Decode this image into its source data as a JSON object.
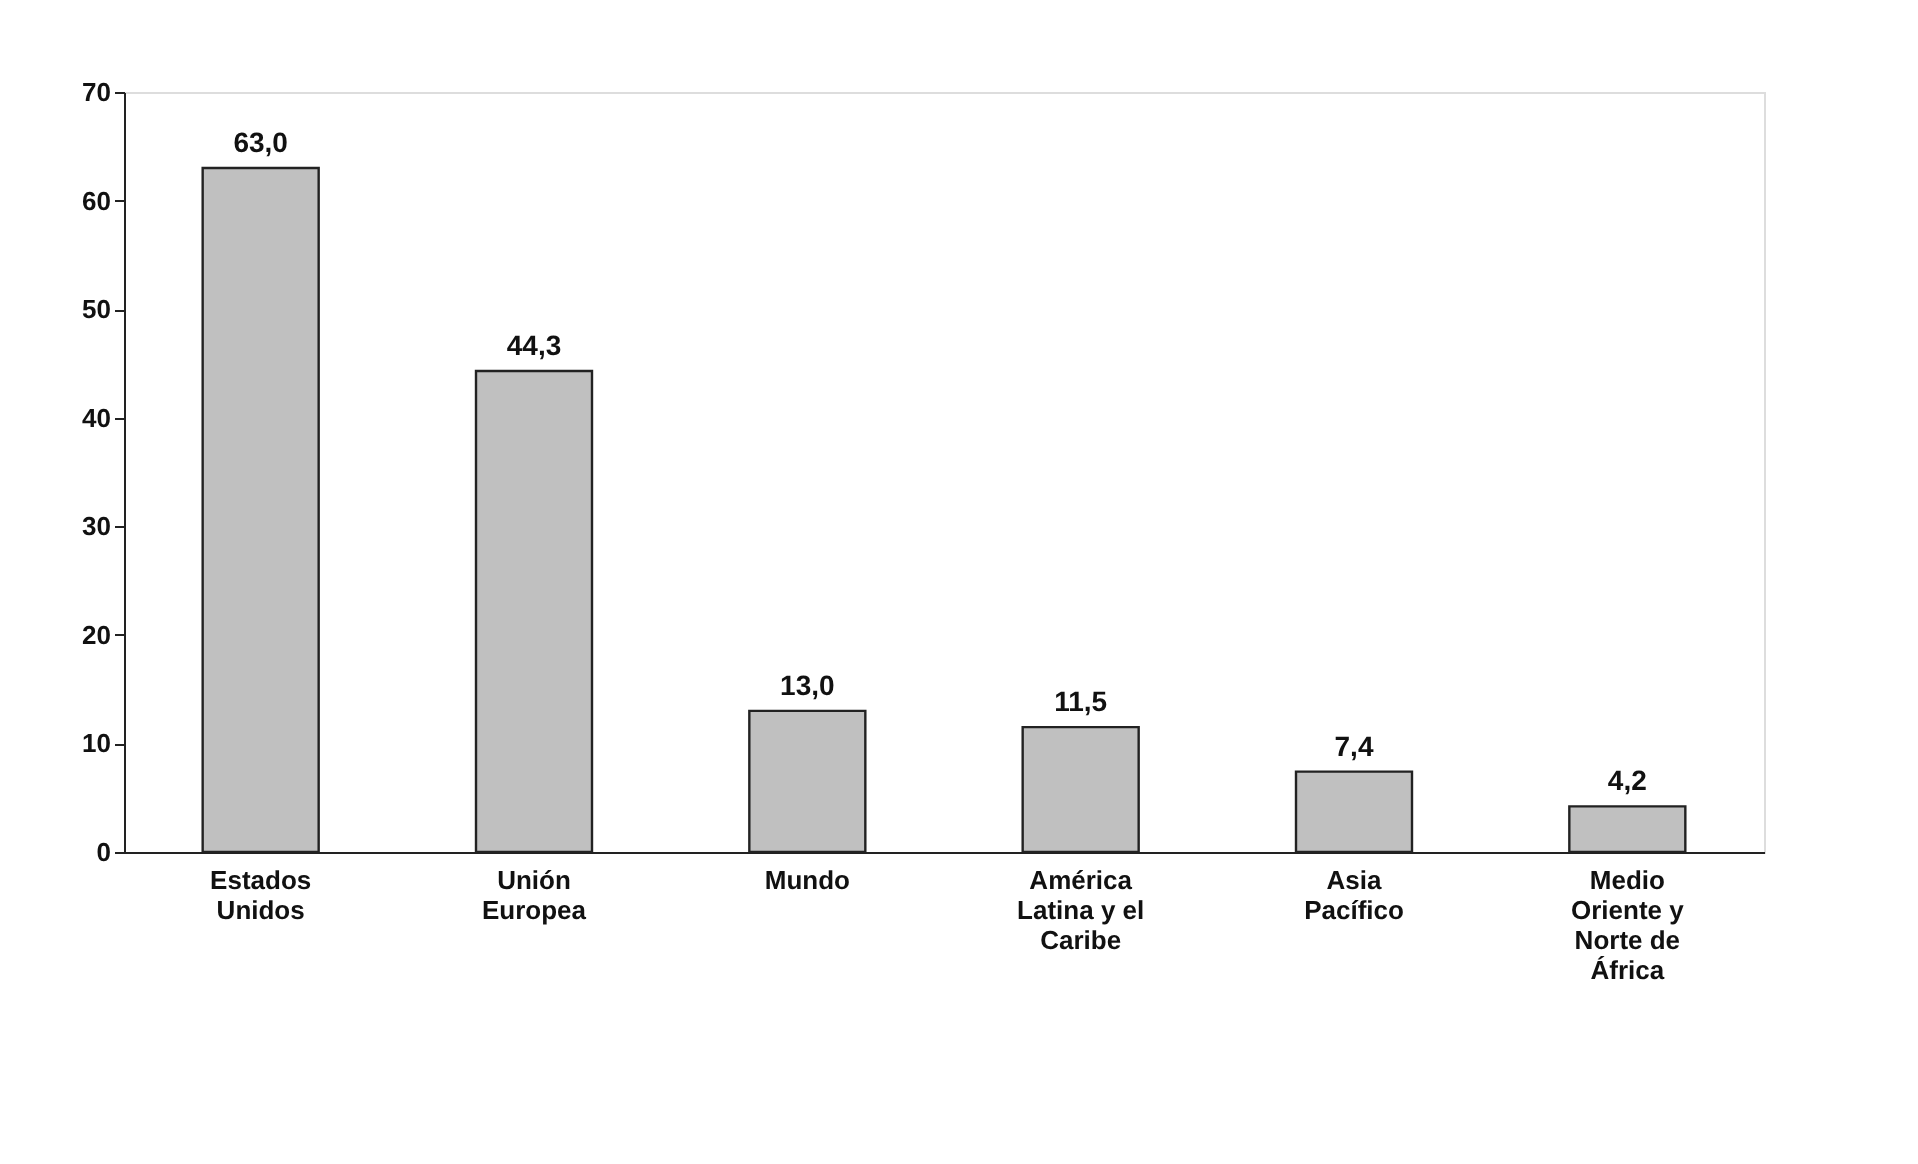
{
  "chart_data": {
    "type": "bar",
    "categories": [
      "Estados Unidos",
      "Unión Europea",
      "Mundo",
      "América Latina y el Caribe",
      "Asia Pacífico",
      "Medio Oriente y Norte de África"
    ],
    "values": [
      63.0,
      44.3,
      13.0,
      11.5,
      7.4,
      4.2
    ],
    "value_labels": [
      "63,0",
      "44,3",
      "13,0",
      "11,5",
      "7,4",
      "4,2"
    ],
    "color": "#c0c0c0",
    "ylim": [
      0,
      70
    ],
    "yticks": [
      0,
      10,
      20,
      30,
      40,
      50,
      60,
      70
    ],
    "grid": false
  }
}
